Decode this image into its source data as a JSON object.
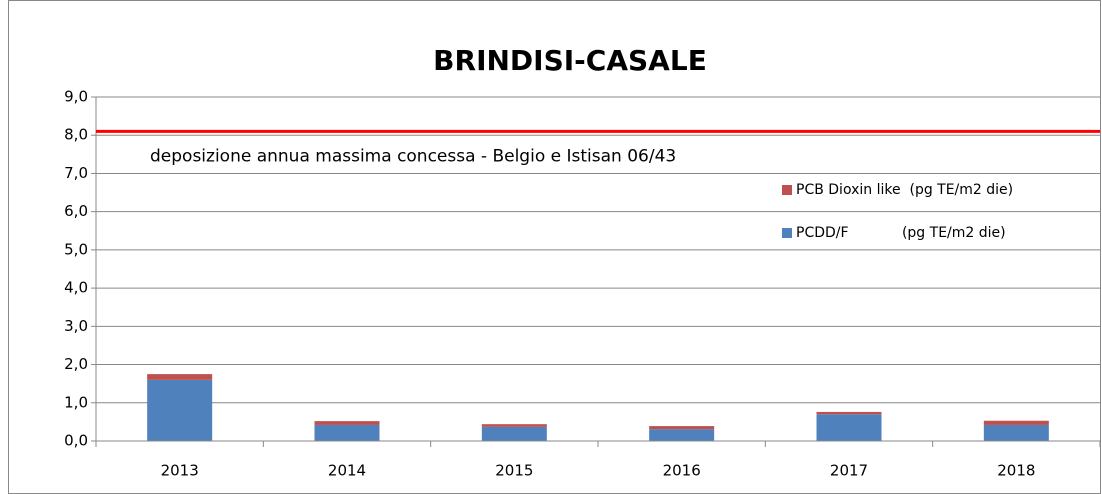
{
  "chart_data": {
    "type": "stacked_bar",
    "title": "BRINDISI-CASALE",
    "categories": [
      "2013",
      "2014",
      "2015",
      "2016",
      "2017",
      "2018"
    ],
    "series": [
      {
        "name": "PCDD/F            (pg TE/m2 die)",
        "color": "#4f81bd",
        "values": [
          1.6,
          0.42,
          0.37,
          0.31,
          0.7,
          0.42
        ]
      },
      {
        "name": "PCB Dioxin like  (pg TE/m2 die)",
        "color": "#c0504d",
        "values": [
          0.15,
          0.1,
          0.07,
          0.08,
          0.06,
          0.11
        ]
      }
    ],
    "ylim": [
      0,
      9
    ],
    "yticks": [
      {
        "value": 0,
        "label": "0,0"
      },
      {
        "value": 1,
        "label": "1,0"
      },
      {
        "value": 2,
        "label": "2,0"
      },
      {
        "value": 3,
        "label": "3,0"
      },
      {
        "value": 4,
        "label": "4,0"
      },
      {
        "value": 5,
        "label": "5,0"
      },
      {
        "value": 6,
        "label": "6,0"
      },
      {
        "value": 7,
        "label": "7,0"
      },
      {
        "value": 8,
        "label": "8,0"
      },
      {
        "value": 9,
        "label": "9,0"
      }
    ],
    "grid": true,
    "threshold": {
      "value": 8.1,
      "color": "#ff0000",
      "label": "deposizione annua massima concessa - Belgio e Istisan 06/43"
    },
    "legend": "upper right"
  }
}
